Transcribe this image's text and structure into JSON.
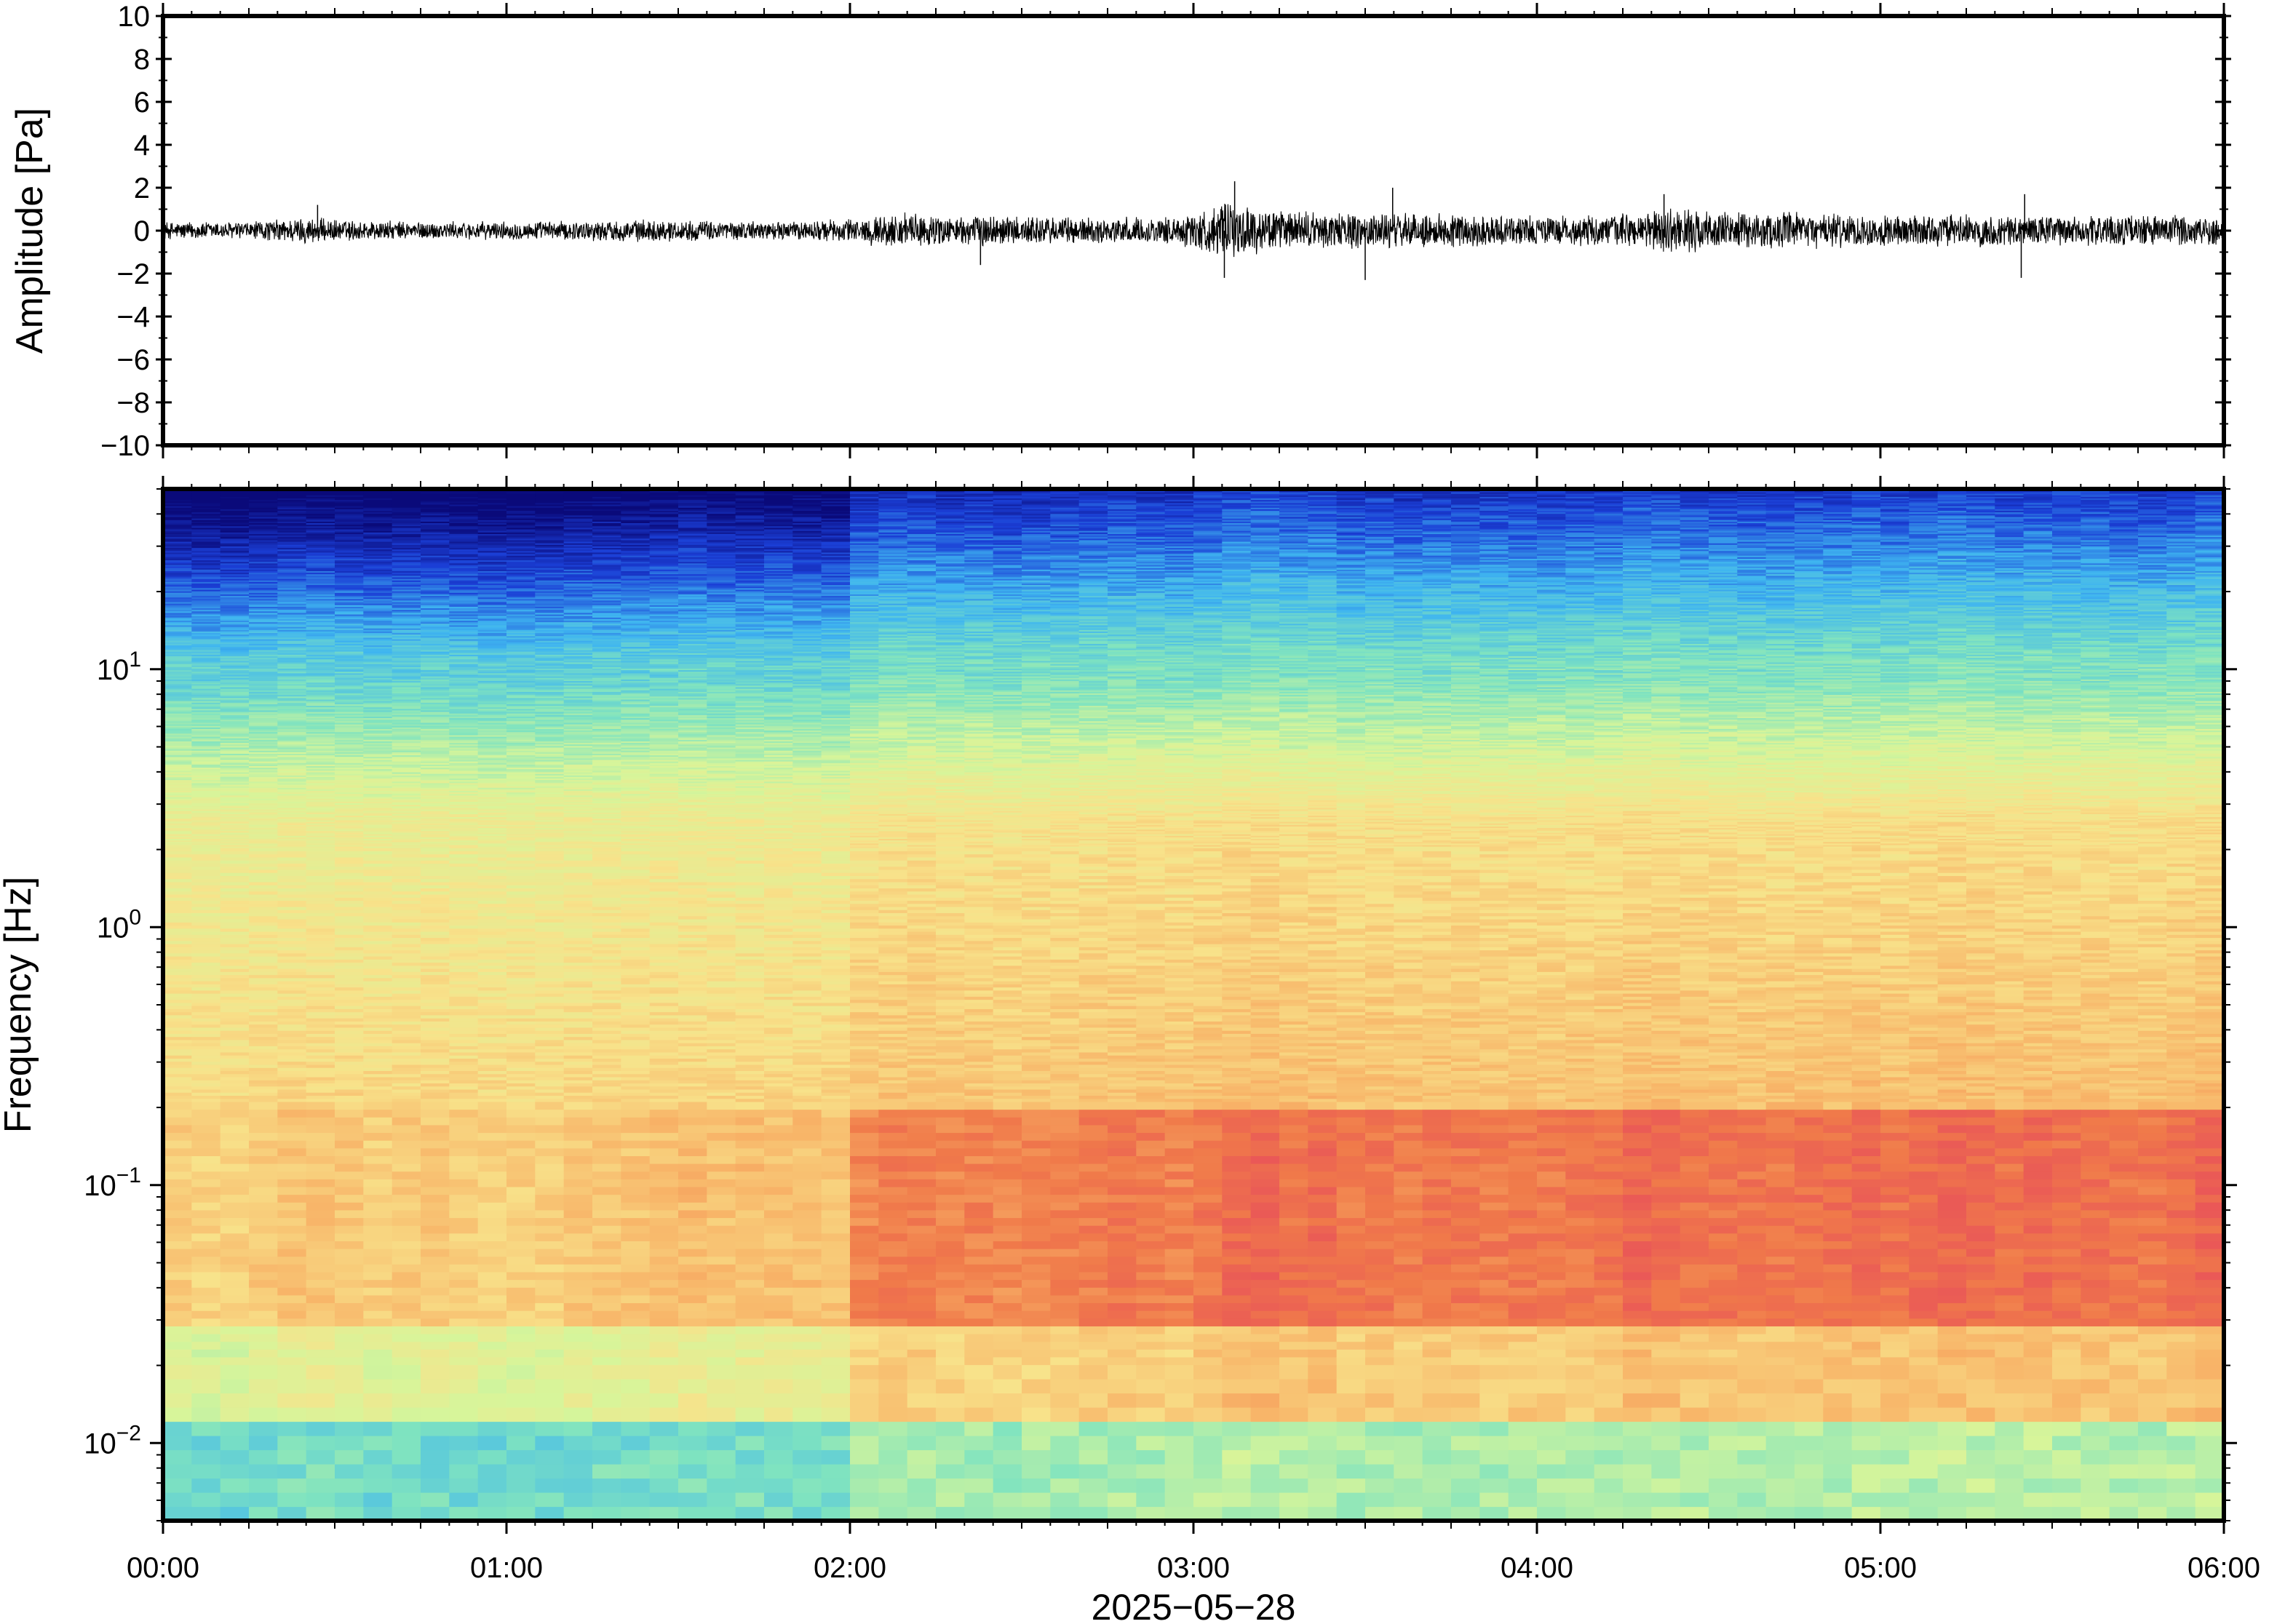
{
  "chart_data": [
    {
      "type": "line",
      "panel": "waveform",
      "title": "",
      "xlabel": "",
      "ylabel": "Amplitude [Pa]",
      "ylim": [
        -10,
        10
      ],
      "yticks": [
        10,
        8,
        6,
        4,
        2,
        0,
        -2,
        -4,
        -6,
        -8,
        -10
      ],
      "ytick_labels": [
        "10",
        "8",
        "6",
        "4",
        "2",
        "0",
        "−2",
        "−4",
        "−6",
        "−8",
        "−10"
      ],
      "xlim_hours": [
        0,
        6
      ],
      "line_color": "#000000",
      "envelope": {
        "x_hours": [
          0.0,
          0.25,
          0.42,
          0.5,
          0.75,
          1.0,
          1.25,
          1.4,
          1.6,
          1.8,
          2.0,
          2.15,
          2.3,
          2.4,
          2.6,
          2.8,
          2.95,
          3.1,
          3.25,
          3.5,
          3.75,
          4.0,
          4.2,
          4.4,
          4.6,
          4.8,
          5.0,
          5.2,
          5.4,
          5.6,
          5.8,
          6.0
        ],
        "amplitude_pa": [
          0.45,
          0.45,
          0.7,
          0.55,
          0.45,
          0.45,
          0.5,
          0.55,
          0.5,
          0.45,
          0.6,
          0.9,
          0.7,
          0.8,
          0.7,
          0.65,
          0.7,
          1.4,
          1.0,
          0.9,
          0.85,
          0.75,
          0.75,
          1.1,
          0.9,
          0.9,
          0.8,
          0.8,
          0.8,
          0.75,
          0.8,
          0.8
        ]
      },
      "spikes": [
        {
          "x_hours": 3.12,
          "y_pa": 2.3
        },
        {
          "x_hours": 3.09,
          "y_pa": -2.2
        },
        {
          "x_hours": 3.5,
          "y_pa": -2.3
        },
        {
          "x_hours": 3.58,
          "y_pa": 2.0
        },
        {
          "x_hours": 4.37,
          "y_pa": 1.7
        },
        {
          "x_hours": 5.42,
          "y_pa": 1.7
        },
        {
          "x_hours": 5.41,
          "y_pa": -2.2
        },
        {
          "x_hours": 2.38,
          "y_pa": -1.6
        },
        {
          "x_hours": 0.45,
          "y_pa": 1.2
        }
      ]
    },
    {
      "type": "heatmap",
      "panel": "spectrogram",
      "title": "",
      "xlabel": "2025−05−28",
      "ylabel": "Frequency [Hz]",
      "yscale": "log",
      "ylim_hz": [
        0.005,
        50
      ],
      "yticks_hz": [
        10,
        1,
        0.1,
        0.01
      ],
      "ytick_labels": [
        {
          "base": "10",
          "exp": "1"
        },
        {
          "base": "10",
          "exp": "0"
        },
        {
          "base": "10",
          "exp": "−1"
        },
        {
          "base": "10",
          "exp": "−2"
        }
      ],
      "x_tick_labels": [
        "00:00",
        "01:00",
        "02:00",
        "03:00",
        "04:00",
        "05:00",
        "06:00"
      ],
      "xlim_hours": [
        0,
        6
      ],
      "colormap": [
        "#0a0a7a",
        "#1b3fd6",
        "#3fb5f0",
        "#7fe3c0",
        "#d7f59a",
        "#f8e28a",
        "#f8b468",
        "#f07a4a",
        "#e8505a"
      ],
      "activity_by_hour": {
        "x_hours": [
          0,
          0.5,
          1.0,
          1.5,
          1.95,
          2.05,
          2.5,
          3.0,
          3.1,
          3.5,
          4.0,
          4.3,
          4.6,
          5.0,
          5.5,
          6.0
        ],
        "level": [
          0.25,
          0.3,
          0.28,
          0.35,
          0.3,
          0.7,
          0.72,
          0.75,
          0.9,
          0.82,
          0.78,
          0.9,
          0.85,
          0.88,
          0.85,
          0.88
        ]
      }
    }
  ]
}
